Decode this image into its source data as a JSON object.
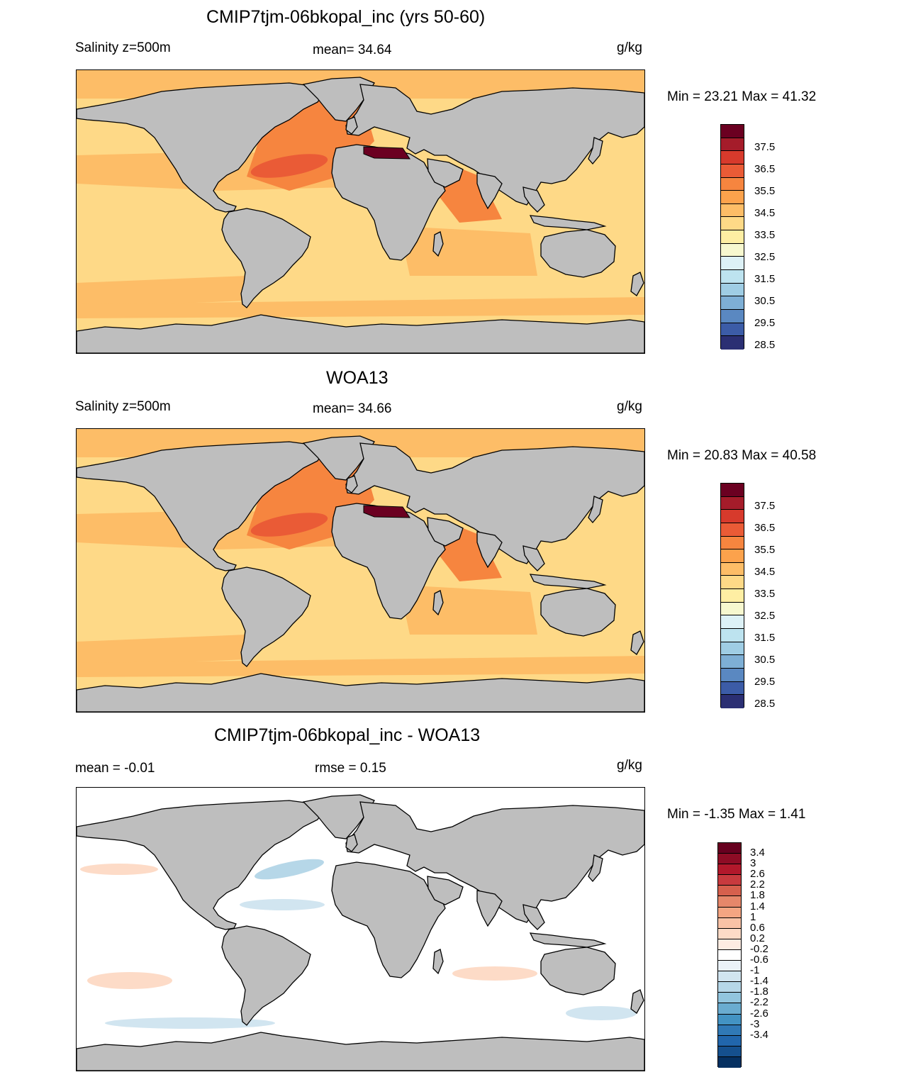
{
  "panels": [
    {
      "title": "CMIP7tjm-06bkopal_inc (yrs 50-60)",
      "left_label": "Salinity z=500m",
      "center_label": "mean=  34.64",
      "units": "g/kg",
      "minmax": "Min =  23.21 Max =  41.32",
      "colorbar": {
        "colors": [
          "#6b0021",
          "#a51c2a",
          "#d73a2c",
          "#ea5b36",
          "#f6853f",
          "#fca24c",
          "#fdbd67",
          "#fed987",
          "#feeea3",
          "#f7f8cf",
          "#ddf1f6",
          "#bde3ef",
          "#9fcde4",
          "#7eafd5",
          "#5a88c1",
          "#3c5ca7",
          "#2b2f73"
        ],
        "labels": [
          "37.5",
          "36.5",
          "35.5",
          "34.5",
          "33.5",
          "32.5",
          "31.5",
          "30.5",
          "29.5",
          "28.5"
        ]
      }
    },
    {
      "title": "WOA13",
      "left_label": "Salinity z=500m",
      "center_label": "mean=  34.66",
      "units": "g/kg",
      "minmax": "Min =  20.83 Max =  40.58",
      "colorbar": {
        "colors": [
          "#6b0021",
          "#a51c2a",
          "#d73a2c",
          "#ea5b36",
          "#f6853f",
          "#fca24c",
          "#fdbd67",
          "#fed987",
          "#feeea3",
          "#f7f8cf",
          "#ddf1f6",
          "#bde3ef",
          "#9fcde4",
          "#7eafd5",
          "#5a88c1",
          "#3c5ca7",
          "#2b2f73"
        ],
        "labels": [
          "37.5",
          "36.5",
          "35.5",
          "34.5",
          "33.5",
          "32.5",
          "31.5",
          "30.5",
          "29.5",
          "28.5"
        ]
      }
    },
    {
      "title": "CMIP7tjm-06bkopal_inc - WOA13",
      "left_label": "mean =  -0.01",
      "center_label": "rmse =   0.15",
      "units": "g/kg",
      "minmax": "Min =  -1.35 Max =   1.41",
      "colorbar": {
        "colors": [
          "#67001f",
          "#8e0c25",
          "#b2182b",
          "#c83a3e",
          "#d6604d",
          "#e6876a",
          "#f4a582",
          "#f8c2a6",
          "#fddbc7",
          "#fdece2",
          "#ffffff",
          "#eaf2f8",
          "#d1e5f0",
          "#b6d7e8",
          "#92c5de",
          "#6aacd0",
          "#4393c3",
          "#3079b6",
          "#2166ac",
          "#15508e",
          "#053061"
        ],
        "labels": [
          "3.4",
          "3",
          "2.6",
          "2.2",
          "1.8",
          "1.4",
          "1",
          "0.6",
          "0.2",
          "-0.2",
          "-0.6",
          "-1",
          "-1.4",
          "-1.8",
          "-2.2",
          "-2.6",
          "-3",
          "-3.4"
        ]
      }
    }
  ],
  "map_colors": {
    "land": "#bebebe",
    "ocean_base": "#fed987",
    "ocean_salty": "#fdbd67",
    "ocean_saltier": "#f6853f",
    "ocean_saltiest": "#ea5b36",
    "med": "#6b0021",
    "diff_base": "#ffffff",
    "diff_pos": "#fddbc7",
    "diff_neg": "#d1e5f0",
    "diff_neg_strong": "#b6d7e8"
  }
}
